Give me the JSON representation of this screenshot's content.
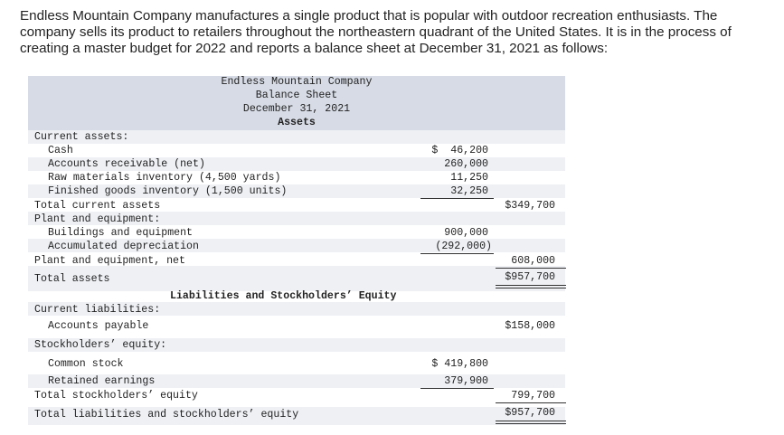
{
  "intro_text": "Endless Mountain Company manufactures a single product that is popular with outdoor recreation enthusiasts. The company sells its product to retailers throughout the northeastern quadrant of the United States. It is in the process of creating a master budget for 2022 and reports a balance sheet at December 31, 2021 as follows:",
  "balance_sheet": {
    "company": "Endless Mountain Company",
    "title": "Balance Sheet",
    "date": "December 31, 2021",
    "assets_heading": "Assets",
    "current_assets_label": "Current assets:",
    "cash": {
      "label": "Cash",
      "value": "$  46,200"
    },
    "accounts_receivable": {
      "label": "Accounts receivable (net)",
      "value": "260,000"
    },
    "raw_materials": {
      "label": "Raw materials inventory (4,500 yards)",
      "value": "11,250"
    },
    "finished_goods": {
      "label": "Finished goods inventory (1,500 units)",
      "value": "32,250"
    },
    "total_current_assets": {
      "label": "Total current assets",
      "value": "$349,700"
    },
    "plant_label": "Plant and equipment:",
    "buildings": {
      "label": "Buildings and equipment",
      "value": "900,000"
    },
    "depreciation": {
      "label": "Accumulated depreciation",
      "value": "(292,000)"
    },
    "plant_net": {
      "label": "Plant and equipment, net",
      "value": "608,000"
    },
    "total_assets": {
      "label": "Total assets",
      "value": "$957,700"
    },
    "liab_heading": "Liabilities and Stockholders’ Equity",
    "current_liab_label": "Current liabilities:",
    "accounts_payable": {
      "label": "Accounts payable",
      "value": "$158,000"
    },
    "equity_label": "Stockholders’ equity:",
    "common_stock": {
      "label": "Common stock",
      "value": "$ 419,800"
    },
    "retained_earnings": {
      "label": "Retained earnings",
      "value": "379,900"
    },
    "total_equity": {
      "label": "Total stockholders’ equity",
      "value": "799,700"
    },
    "total_liab_equity": {
      "label": "Total liabilities and stockholders’ equity",
      "value": "$957,700"
    }
  }
}
